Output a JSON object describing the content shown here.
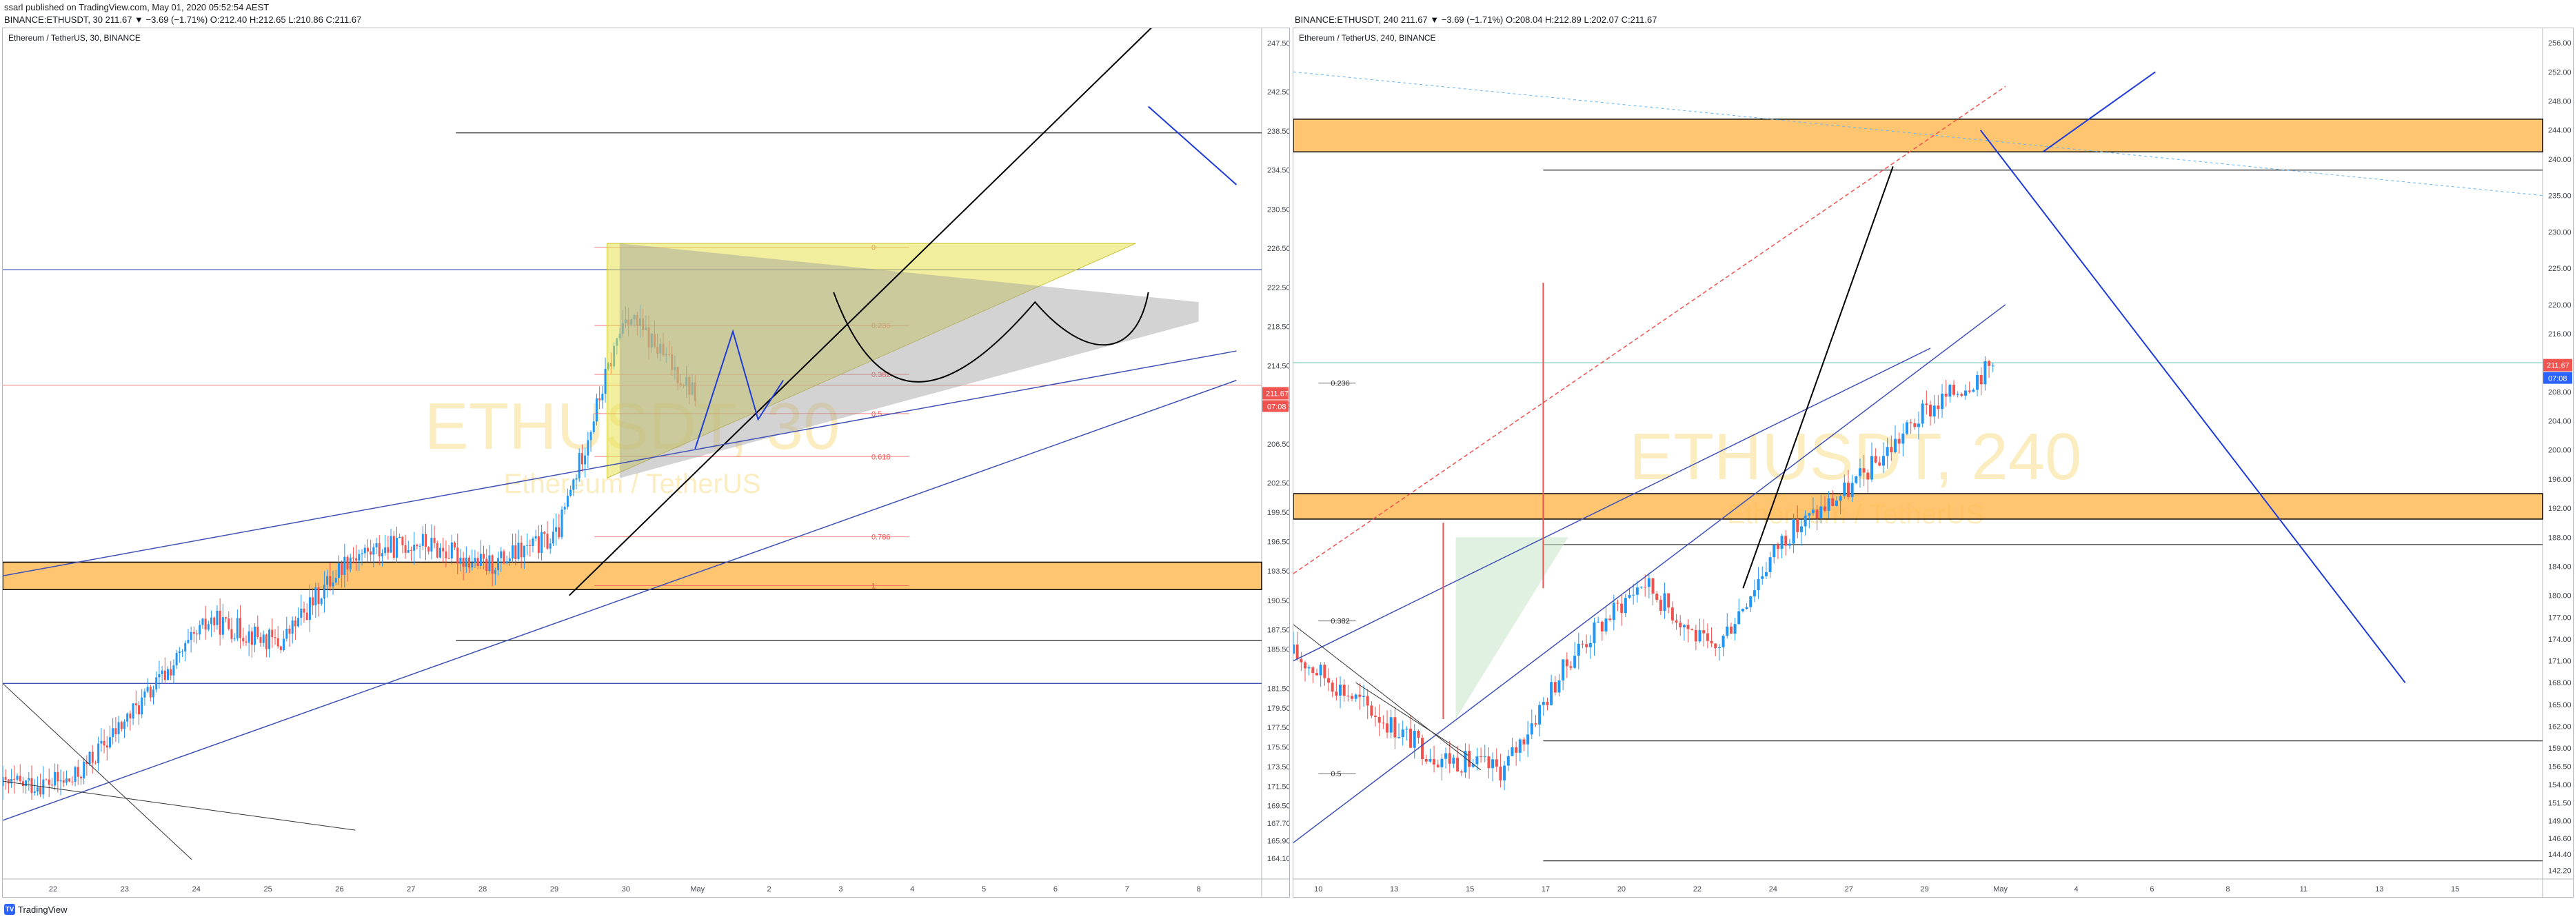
{
  "header": {
    "publisher": "ssarl published on TradingView.com, May 01, 2020 05:52:54 AEST",
    "symbol_line_left": "BINANCE:ETHUSDT, 30 211.67 ▼ −3.69 (−1.71%) O:212.40 H:212.65 L:210.86 C:211.67",
    "symbol_line_right": "BINANCE:ETHUSDT, 240 211.67 ▼ −3.69 (−1.71%) O:208.04 H:212.89 L:202.07 C:211.67"
  },
  "footer": {
    "brand": "TradingView",
    "logo_text": "TV"
  },
  "colors": {
    "up": "#2196f3",
    "down": "#ef5350",
    "zone": "#ffb74d",
    "fib": "#ef5350",
    "trend": "#3f51b5",
    "price_tag": "#ef5350",
    "watermark": "#f7d774"
  },
  "chart_data": [
    {
      "type": "candlestick",
      "pane_title": "Ethereum / TetherUS, 30, BINANCE",
      "watermark_symbol": "ETHUSDT, 30",
      "watermark_name": "Ethereum / TetherUS",
      "interval": "30",
      "ylim": [
        162.0,
        249.0
      ],
      "y_ticks": [
        "247.50",
        "242.50",
        "238.50",
        "234.50",
        "230.50",
        "226.50",
        "222.50",
        "218.50",
        "214.50",
        "210.50",
        "206.50",
        "202.50",
        "199.50",
        "196.50",
        "193.50",
        "190.50",
        "187.50",
        "185.50",
        "181.50",
        "179.50",
        "177.50",
        "175.50",
        "173.50",
        "171.50",
        "169.50",
        "167.70",
        "165.90",
        "164.10"
      ],
      "x_ticks": [
        "22",
        "23",
        "24",
        "25",
        "26",
        "27",
        "28",
        "29",
        "30",
        "May",
        "2",
        "3",
        "4",
        "5",
        "6",
        "7",
        "8"
      ],
      "last_price": "211.67",
      "countdown": "07:08",
      "fib_labels": [
        "0",
        "0.236",
        "0.382",
        "0.5",
        "0.618",
        "0.786",
        "1"
      ],
      "fib_levels": [
        226.6,
        218.6,
        213.6,
        209.6,
        205.2,
        197.0,
        192.0
      ],
      "horizontal_levels": [
        238.3,
        224.3,
        212.5,
        186.4,
        182.0
      ],
      "demand_zone": [
        191.6,
        194.4
      ],
      "series": [
        {
          "x": "Apr 21",
          "close": 171.5
        },
        {
          "x": "Apr 22",
          "close": 172.0
        },
        {
          "x": "Apr 23",
          "close": 180.0
        },
        {
          "x": "Apr 24",
          "close": 188.5
        },
        {
          "x": "Apr 25",
          "close": 186.0
        },
        {
          "x": "Apr 26",
          "close": 195.0
        },
        {
          "x": "Apr 27",
          "close": 196.5
        },
        {
          "x": "Apr 28",
          "close": 194.0
        },
        {
          "x": "Apr 29",
          "close": 197.0
        },
        {
          "x": "Apr 30",
          "close": 220.0
        },
        {
          "x": "May",
          "close": 211.67
        }
      ]
    },
    {
      "type": "candlestick",
      "pane_title": "Ethereum / TetherUS, 240, BINANCE",
      "watermark_symbol": "ETHUSDT, 240",
      "watermark_name": "Ethereum / TetherUS",
      "interval": "240",
      "ylim": [
        141.0,
        258.0
      ],
      "y_ticks": [
        "256.00",
        "252.00",
        "248.00",
        "244.00",
        "240.00",
        "235.00",
        "230.00",
        "225.00",
        "220.00",
        "216.00",
        "212.00",
        "208.00",
        "204.00",
        "200.00",
        "196.00",
        "192.00",
        "188.00",
        "184.00",
        "180.00",
        "177.00",
        "174.00",
        "171.00",
        "168.00",
        "165.00",
        "162.00",
        "159.00",
        "156.50",
        "154.00",
        "151.50",
        "149.00",
        "146.60",
        "144.40",
        "142.20"
      ],
      "x_ticks": [
        "10",
        "13",
        "15",
        "17",
        "20",
        "22",
        "24",
        "27",
        "29",
        "May",
        "4",
        "6",
        "8",
        "11",
        "13",
        "15"
      ],
      "last_price": "211.67",
      "countdown": "07:08",
      "fib_labels": [
        "0.236",
        "0.382",
        "0.5"
      ],
      "fib_levels": [
        209.2,
        176.5,
        155.5
      ],
      "horizontal_levels": [
        238.5,
        212.0,
        187.0,
        160.0,
        143.5
      ],
      "supply_zone": [
        241.0,
        245.5
      ],
      "demand_zone": [
        190.5,
        194.0
      ],
      "series": [
        {
          "x": "Apr 8",
          "close": 172.0
        },
        {
          "x": "Apr 10",
          "close": 165.0
        },
        {
          "x": "Apr 13",
          "close": 158.0
        },
        {
          "x": "Apr 15",
          "close": 156.0
        },
        {
          "x": "Apr 17",
          "close": 172.0
        },
        {
          "x": "Apr 20",
          "close": 182.0
        },
        {
          "x": "Apr 22",
          "close": 172.0
        },
        {
          "x": "Apr 24",
          "close": 188.0
        },
        {
          "x": "Apr 27",
          "close": 195.0
        },
        {
          "x": "Apr 29",
          "close": 205.0
        },
        {
          "x": "May",
          "close": 211.67
        }
      ]
    }
  ]
}
